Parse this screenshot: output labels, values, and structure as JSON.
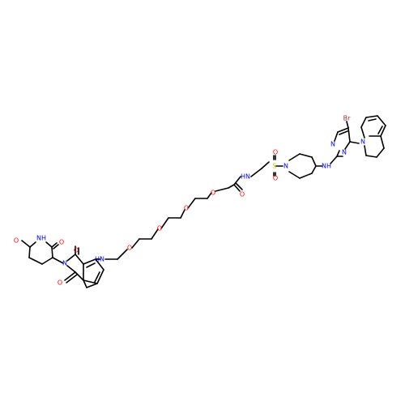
{
  "colors": {
    "bond": "#000000",
    "N": "#0000FF",
    "O": "#FF0000",
    "S": "#CCCC00",
    "Br": "#A62929",
    "background": "#FFFFFF"
  },
  "atom_labels": {
    "N": "N",
    "O": "O",
    "S": "S",
    "Br": "Br",
    "NH": "NH",
    "HN": "HN"
  }
}
